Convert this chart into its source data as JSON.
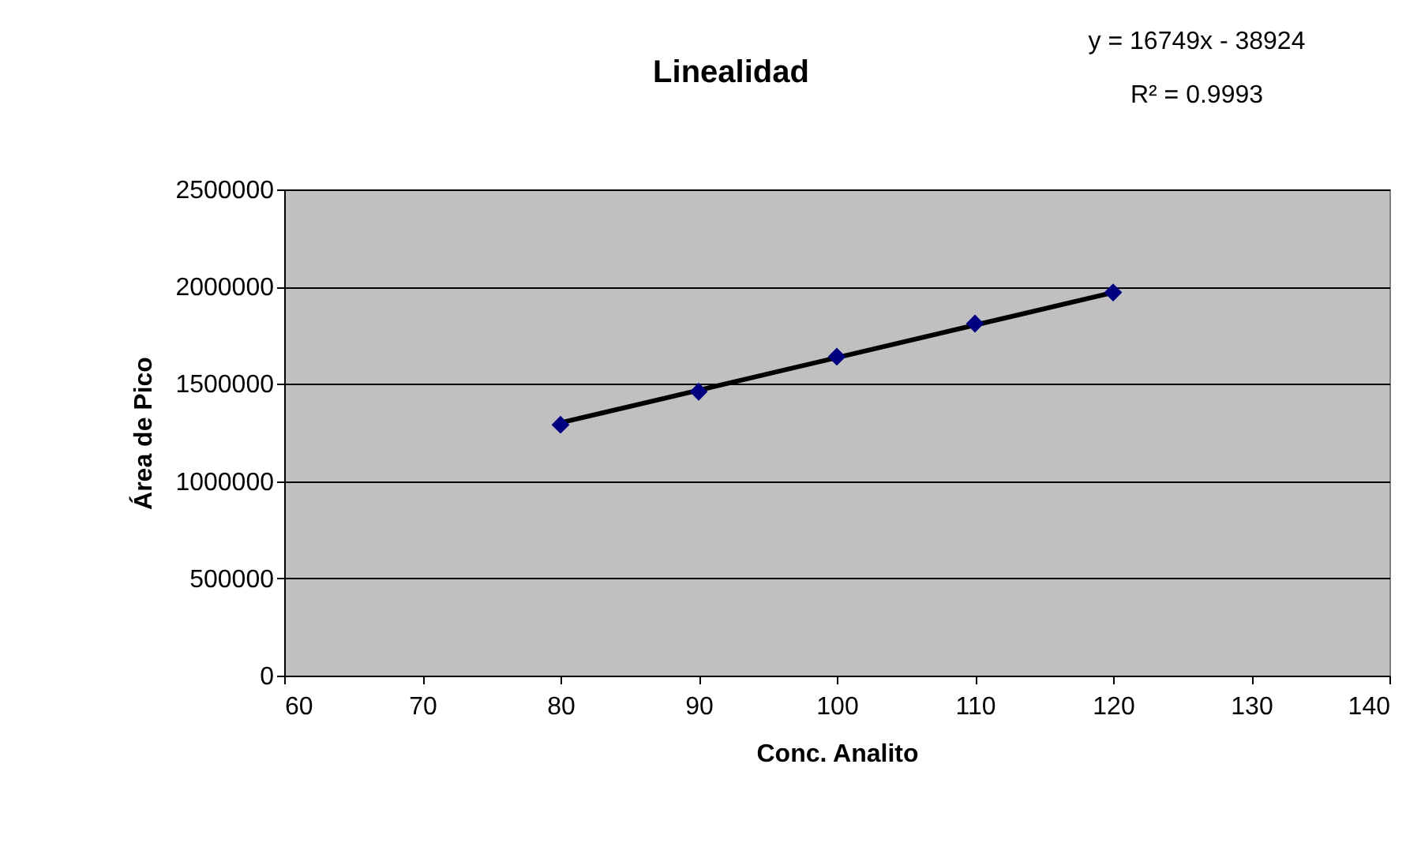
{
  "chart_data": {
    "type": "scatter",
    "title": "Linealidad",
    "xlabel": "Conc. Analito",
    "ylabel": "Área de Pico",
    "annotations": [
      "y = 16749x - 38924",
      "R² = 0.9993"
    ],
    "series": [
      {
        "color": "#000080",
        "marker": "diamond",
        "x": [
          80,
          90,
          100,
          110,
          120
        ],
        "values": [
          1290000,
          1460000,
          1640000,
          1810000,
          1970000
        ]
      },
      {
        "type": "line",
        "color": "#000000",
        "marker": "none",
        "line_style": "solid",
        "x": [
          80,
          120
        ],
        "values": [
          1300000,
          1970000
        ]
      }
    ],
    "xlim": [
      60,
      140
    ],
    "xticks": [
      60,
      70,
      80,
      90,
      100,
      110,
      120,
      130,
      140
    ],
    "ylim": [
      0,
      2500000
    ],
    "yticks": [
      0,
      500000,
      1000000,
      1500000,
      2000000,
      2500000
    ],
    "grid": "y"
  }
}
